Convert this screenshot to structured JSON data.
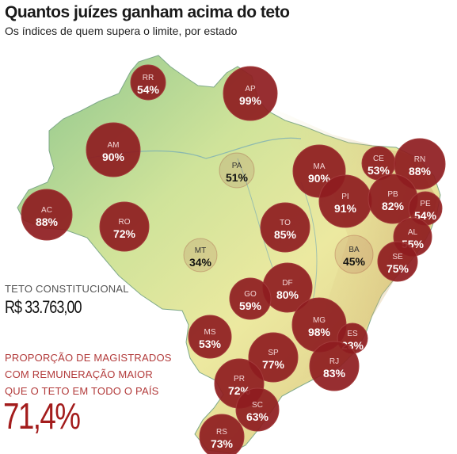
{
  "title": "Quantos juízes ganham acima do teto",
  "subtitle": "Os índices de quem supera o limite, por estado",
  "teto": {
    "label": "TETO CONSTITUCIONAL",
    "value": "R$ 33.763,00"
  },
  "proporcao": {
    "label": "PROPORÇÃO DE MAGISTRADOS COM REMUNERAÇÃO MAIOR QUE O TETO EM TODO O PAÍS",
    "value": "71,4%"
  },
  "colors": {
    "bubble": "#8e1c1f",
    "bubble_edge": "#a33b3b",
    "map_green": "#7fc08a",
    "map_yellow": "#ece9a0",
    "map_brown": "#c9a06b"
  },
  "states": [
    {
      "uf": "RR",
      "value": "54%"
    },
    {
      "uf": "AP",
      "value": "99%"
    },
    {
      "uf": "AM",
      "value": "90%"
    },
    {
      "uf": "PA",
      "value": "51%"
    },
    {
      "uf": "MA",
      "value": "90%"
    },
    {
      "uf": "CE",
      "value": "53%"
    },
    {
      "uf": "RN",
      "value": "88%"
    },
    {
      "uf": "PI",
      "value": "91%"
    },
    {
      "uf": "PB",
      "value": "82%"
    },
    {
      "uf": "PE",
      "value": "54%"
    },
    {
      "uf": "AC",
      "value": "88%"
    },
    {
      "uf": "RO",
      "value": "72%"
    },
    {
      "uf": "TO",
      "value": "85%"
    },
    {
      "uf": "AL",
      "value": "55%"
    },
    {
      "uf": "MT",
      "value": "34%"
    },
    {
      "uf": "BA",
      "value": "45%"
    },
    {
      "uf": "SE",
      "value": "75%"
    },
    {
      "uf": "DF",
      "value": "80%"
    },
    {
      "uf": "GO",
      "value": "59%"
    },
    {
      "uf": "MG",
      "value": "98%"
    },
    {
      "uf": "ES",
      "value": "23%"
    },
    {
      "uf": "MS",
      "value": "53%"
    },
    {
      "uf": "SP",
      "value": "77%"
    },
    {
      "uf": "RJ",
      "value": "83%"
    },
    {
      "uf": "PR",
      "value": "72%"
    },
    {
      "uf": "SC",
      "value": "63%"
    },
    {
      "uf": "RS",
      "value": "73%"
    }
  ]
}
